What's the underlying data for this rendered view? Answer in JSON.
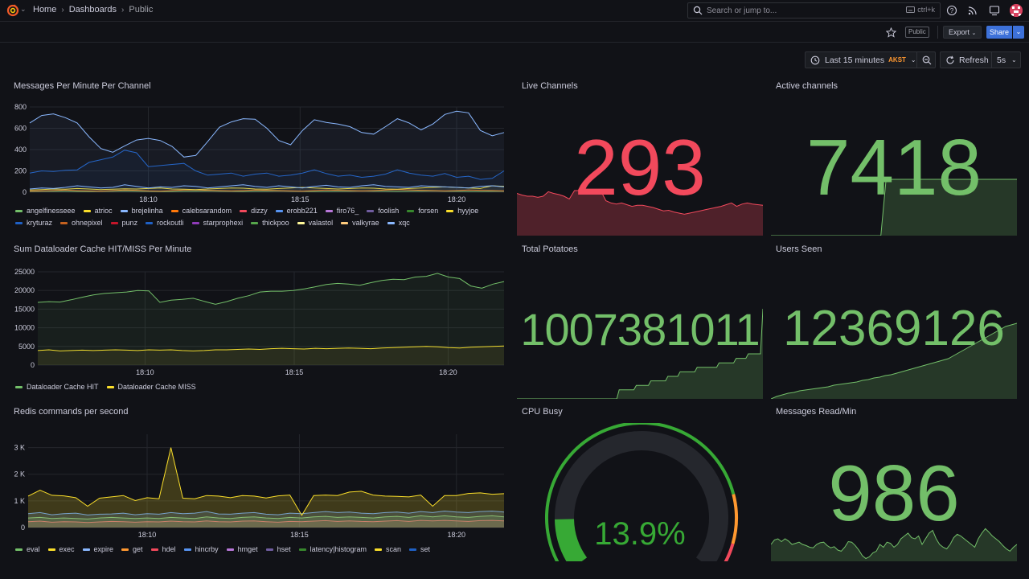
{
  "breadcrumb": {
    "home": "Home",
    "dashboards": "Dashboards",
    "current": "Public"
  },
  "search": {
    "placeholder": "Search or jump to...",
    "shortcut": "ctrl+k"
  },
  "toolbar": {
    "public_badge": "Public",
    "export_label": "Export",
    "share_label": "Share"
  },
  "time": {
    "range_label": "Last 15 minutes",
    "timezone": "AKST",
    "refresh_label": "Refresh",
    "refresh_interval": "5s"
  },
  "icons": [
    "grafana-logo-icon",
    "search-icon",
    "keyboard-icon",
    "help-icon",
    "rss-icon",
    "monitor-icon",
    "star-icon",
    "clock-icon",
    "zoom-out-icon",
    "refresh-icon"
  ],
  "colors": {
    "green": "#73bf69",
    "red": "#f2495c",
    "orange": "#ff9830",
    "yellow": "#fade2a",
    "blue": "#5794f2",
    "gauge_green": "#37a935"
  },
  "panels": {
    "messages": {
      "title": "Messages Per Minute Per Channel",
      "legend": [
        {
          "name": "angelfinesseee",
          "color": "#73bf69"
        },
        {
          "name": "atrioc",
          "color": "#fade2a"
        },
        {
          "name": "brejelinha",
          "color": "#8ab8ff"
        },
        {
          "name": "calebsarandom",
          "color": "#ff780a"
        },
        {
          "name": "dizzy",
          "color": "#f2495c"
        },
        {
          "name": "erobb221",
          "color": "#5794f2"
        },
        {
          "name": "firo76_",
          "color": "#b877d9"
        },
        {
          "name": "foolish",
          "color": "#705da0"
        },
        {
          "name": "forsen",
          "color": "#37872d"
        },
        {
          "name": "hyyjoe",
          "color": "#fade2a"
        },
        {
          "name": "kryturaz",
          "color": "#1f60c4"
        },
        {
          "name": "ohnepixel",
          "color": "#c4611f"
        },
        {
          "name": "punz",
          "color": "#c4162a"
        },
        {
          "name": "rockoutli",
          "color": "#1f60c4"
        },
        {
          "name": "starprophexi",
          "color": "#8f3bb8"
        },
        {
          "name": "thickpoo",
          "color": "#56a64b"
        },
        {
          "name": "valastol",
          "color": "#fff899"
        },
        {
          "name": "valkyrae",
          "color": "#ffcb7d"
        },
        {
          "name": "xqc",
          "color": "#8ab8ff"
        }
      ]
    },
    "live": {
      "title": "Live Channels",
      "value": "293"
    },
    "active": {
      "title": "Active channels",
      "value": "7418"
    },
    "dataloader": {
      "title": "Sum Dataloader Cache HIT/MISS Per Minute",
      "legend": [
        {
          "name": "Dataloader Cache HIT",
          "color": "#73bf69"
        },
        {
          "name": "Dataloader Cache MISS",
          "color": "#fade2a"
        }
      ]
    },
    "potatoes": {
      "title": "Total Potatoes",
      "value": "1007381011"
    },
    "users": {
      "title": "Users Seen",
      "value": "12369126"
    },
    "redis": {
      "title": "Redis commands per second",
      "legend": [
        {
          "name": "eval",
          "color": "#73bf69"
        },
        {
          "name": "exec",
          "color": "#fade2a"
        },
        {
          "name": "expire",
          "color": "#8ab8ff"
        },
        {
          "name": "get",
          "color": "#ff9830"
        },
        {
          "name": "hdel",
          "color": "#f2495c"
        },
        {
          "name": "hincrby",
          "color": "#5794f2"
        },
        {
          "name": "hmget",
          "color": "#b877d9"
        },
        {
          "name": "hset",
          "color": "#705da0"
        },
        {
          "name": "latency|histogram",
          "color": "#37872d"
        },
        {
          "name": "scan",
          "color": "#fade2a"
        },
        {
          "name": "set",
          "color": "#1f60c4"
        }
      ]
    },
    "cpu": {
      "title": "CPU Busy",
      "value": "13.9%",
      "percent": 13.9
    },
    "readmin": {
      "title": "Messages Read/Min",
      "value": "986"
    }
  },
  "chart_data": [
    {
      "type": "line",
      "title": "Messages Per Minute Per Channel",
      "x_ticks": [
        "18:10",
        "18:15",
        "18:20"
      ],
      "ylim": [
        0,
        800
      ],
      "y_ticks": [
        0,
        200,
        400,
        600,
        800
      ],
      "series": [
        {
          "name": "xqc",
          "color": "#8ab8ff",
          "values": [
            650,
            720,
            735,
            700,
            650,
            520,
            410,
            375,
            435,
            490,
            505,
            485,
            430,
            330,
            345,
            475,
            610,
            660,
            690,
            685,
            600,
            485,
            445,
            580,
            680,
            655,
            640,
            615,
            560,
            545,
            615,
            690,
            650,
            585,
            640,
            730,
            760,
            745,
            580,
            530,
            560
          ]
        },
        {
          "name": "rockoutli",
          "color": "#1f60c4",
          "values": [
            180,
            200,
            195,
            205,
            210,
            280,
            305,
            330,
            395,
            370,
            240,
            250,
            260,
            270,
            200,
            160,
            170,
            180,
            150,
            170,
            180,
            150,
            160,
            180,
            210,
            175,
            150,
            160,
            140,
            150,
            170,
            210,
            180,
            160,
            150,
            175,
            140,
            150,
            120,
            130,
            200
          ]
        },
        {
          "name": "brejelinha",
          "color": "#8ab8ff",
          "values": [
            30,
            40,
            35,
            45,
            60,
            50,
            40,
            45,
            70,
            55,
            40,
            50,
            45,
            60,
            55,
            40,
            50,
            60,
            70,
            55,
            45,
            60,
            50,
            40,
            55,
            65,
            50,
            45,
            60,
            70,
            55,
            50,
            45,
            60,
            55,
            50,
            45,
            40,
            55,
            60,
            50
          ]
        },
        {
          "name": "atrioc",
          "color": "#fade2a",
          "values": [
            20,
            25,
            30,
            28,
            35,
            30,
            25,
            28,
            32,
            30,
            35,
            40,
            30,
            28,
            25,
            30,
            35,
            40,
            38,
            30,
            28,
            35,
            40,
            45,
            40,
            35,
            30,
            35,
            40,
            38,
            30,
            28,
            35,
            40,
            45,
            50,
            45,
            40,
            35,
            60,
            55
          ]
        },
        {
          "name": "calebsarandom",
          "color": "#ff780a",
          "values": [
            10,
            12,
            15,
            20,
            15,
            12,
            10,
            15,
            20,
            18,
            12,
            10,
            15,
            20,
            22,
            18,
            15,
            12,
            15,
            20,
            18,
            15,
            12,
            10,
            15,
            20,
            18,
            15,
            12,
            15,
            20,
            25,
            22,
            18,
            15,
            12,
            15,
            20,
            18,
            15,
            12
          ]
        },
        {
          "name": "thickpoo",
          "color": "#56a64b",
          "values": [
            5,
            8,
            10,
            8,
            6,
            5,
            8,
            10,
            12,
            10,
            8,
            6,
            5,
            8,
            10,
            12,
            10,
            8,
            6,
            8,
            10,
            12,
            10,
            8,
            6,
            5,
            8,
            10,
            12,
            10,
            8,
            6,
            8,
            10,
            12,
            10,
            8,
            6,
            5,
            8,
            10
          ]
        }
      ]
    },
    {
      "type": "area",
      "title": "Live Channels",
      "values": [
        75,
        72,
        70,
        70,
        68,
        70,
        78,
        75,
        73,
        70,
        65,
        80,
        80,
        80,
        76,
        78,
        80,
        62,
        58,
        56,
        58,
        55,
        52,
        54,
        54,
        52,
        50,
        47,
        44,
        45,
        42,
        40,
        38,
        40,
        42,
        44,
        46,
        48,
        50,
        52,
        55,
        58,
        52,
        56,
        58,
        56,
        55,
        54
      ]
    },
    {
      "type": "area",
      "title": "Active channels",
      "values": [
        0,
        0,
        0,
        0,
        0,
        0,
        0,
        0,
        0,
        0,
        0,
        0,
        0,
        0,
        0,
        0,
        0,
        0,
        0,
        0,
        0,
        0,
        100,
        100,
        100,
        100,
        100,
        100,
        100,
        100,
        100,
        100,
        100,
        100,
        100,
        100,
        100,
        100,
        100,
        100,
        100,
        100,
        100,
        100,
        100,
        100,
        100,
        100
      ]
    },
    {
      "type": "line",
      "title": "Sum Dataloader Cache HIT/MISS Per Minute",
      "x_ticks": [
        "18:10",
        "18:15",
        "18:20"
      ],
      "ylim": [
        0,
        25000
      ],
      "y_ticks": [
        0,
        5000,
        10000,
        15000,
        20000,
        25000
      ],
      "series": [
        {
          "name": "Dataloader Cache HIT",
          "color": "#73bf69",
          "values": [
            16800,
            17000,
            16900,
            17500,
            18200,
            18800,
            19200,
            19400,
            19600,
            20000,
            19900,
            16800,
            17400,
            17600,
            17900,
            17100,
            16300,
            17000,
            17900,
            18600,
            19600,
            19800,
            19800,
            20000,
            20400,
            21000,
            21600,
            21900,
            21700,
            21400,
            22100,
            22700,
            23000,
            22900,
            23600,
            23800,
            24600,
            23600,
            23200,
            21200,
            20600,
            21700,
            22400
          ]
        },
        {
          "name": "Dataloader Cache MISS",
          "color": "#fade2a",
          "values": [
            3900,
            4100,
            3800,
            3900,
            4000,
            3900,
            4000,
            4100,
            4000,
            3900,
            4100,
            4000,
            4100,
            3900,
            3800,
            3900,
            4100,
            4100,
            4200,
            4300,
            4200,
            4400,
            4500,
            4400,
            4300,
            4500,
            4400,
            4500,
            4600,
            4500,
            4400,
            4600,
            4700,
            4800,
            4900,
            5000,
            4900,
            4700,
            4600,
            4800,
            4900,
            5000,
            5100
          ]
        }
      ]
    },
    {
      "type": "area",
      "title": "Total Potatoes",
      "values": [
        0,
        0,
        0,
        0,
        0,
        0,
        0,
        0,
        0,
        0,
        0,
        0,
        0,
        0,
        0,
        0,
        0,
        0,
        0,
        0,
        0,
        0,
        0,
        0,
        0,
        0,
        0,
        0,
        0,
        0,
        0,
        0,
        0,
        0,
        0,
        0,
        0,
        0,
        0,
        0,
        0,
        0,
        10,
        10,
        10,
        10,
        10,
        10,
        10,
        15,
        15,
        15,
        15,
        15,
        15,
        20,
        20,
        20,
        20,
        20,
        20,
        20,
        25,
        25,
        25,
        25,
        25,
        30,
        30,
        30,
        30,
        30,
        30,
        30,
        35,
        35,
        35,
        35,
        35,
        35,
        35,
        35,
        35,
        40,
        40,
        40,
        40,
        40,
        40,
        40,
        45,
        45,
        45,
        45,
        45,
        50,
        50,
        50,
        50,
        50,
        50,
        100
      ]
    },
    {
      "type": "area",
      "title": "Users Seen",
      "values": [
        0,
        3,
        5,
        7,
        8,
        10,
        11,
        12,
        13,
        14,
        15,
        17,
        18,
        19,
        20,
        21,
        23,
        24,
        26,
        27,
        29,
        30,
        32,
        34,
        36,
        38,
        40,
        42,
        44,
        46,
        48,
        50,
        54,
        58,
        62,
        66,
        70,
        74,
        78,
        82,
        86,
        90,
        92,
        94
      ]
    },
    {
      "type": "area",
      "title": "Redis commands per second",
      "x_ticks": [
        "18:10",
        "18:15",
        "18:20"
      ],
      "ylim": [
        0,
        3500
      ],
      "y_ticks": [
        "0",
        "1 K",
        "2 K",
        "3 K"
      ],
      "series": [
        {
          "name": "exec",
          "color": "#fade2a",
          "values": [
            1180,
            1400,
            1210,
            1190,
            1120,
            800,
            1100,
            1150,
            1200,
            1010,
            1120,
            1080,
            3000,
            1100,
            1080,
            1200,
            1180,
            1120,
            1200,
            1180,
            1110,
            1190,
            1220,
            460,
            1200,
            1220,
            1200,
            1330,
            1360,
            1220,
            1180,
            1170,
            1150,
            1220,
            800,
            1200,
            1200,
            1280,
            1300,
            1250,
            1270
          ]
        },
        {
          "name": "hincrby",
          "color": "#5794f2",
          "values": [
            520,
            560,
            480,
            520,
            540,
            470,
            500,
            510,
            540,
            480,
            520,
            500,
            560,
            520,
            540,
            600,
            510,
            500,
            540,
            560,
            500,
            480,
            540,
            520,
            560,
            600,
            560,
            580,
            540,
            520,
            560,
            580,
            540,
            600,
            560,
            620,
            580,
            560,
            600,
            620,
            580
          ]
        },
        {
          "name": "latency|histogram",
          "color": "#73bf69",
          "values": [
            360,
            380,
            340,
            360,
            340,
            320,
            360,
            380,
            360,
            340,
            360,
            340,
            380,
            360,
            340,
            400,
            360,
            340,
            380,
            400,
            360,
            340,
            380,
            360,
            400,
            420,
            380,
            400,
            380,
            360,
            400,
            420,
            380,
            440,
            400,
            440,
            400,
            380,
            420,
            440,
            400
          ]
        },
        {
          "name": "hdel",
          "color": "#f2495c",
          "values": [
            220,
            240,
            200,
            220,
            210,
            190,
            210,
            230,
            220,
            200,
            220,
            210,
            240,
            220,
            210,
            250,
            220,
            210,
            240,
            250,
            220,
            200,
            230,
            220,
            240,
            260,
            230,
            250,
            230,
            220,
            240,
            260,
            230,
            270,
            250,
            270,
            250,
            230,
            260,
            270,
            250
          ]
        }
      ]
    },
    {
      "type": "area",
      "title": "Messages Read/Min",
      "values": [
        30,
        38,
        40,
        35,
        40,
        36,
        30,
        32,
        34,
        30,
        28,
        25,
        24,
        30,
        33,
        34,
        28,
        24,
        26,
        20,
        18,
        25,
        35,
        34,
        28,
        20,
        10,
        5,
        8,
        15,
        18,
        30,
        25,
        34,
        32,
        25,
        30,
        40,
        45,
        50,
        42,
        40,
        45,
        30,
        40,
        50,
        55,
        40,
        30,
        25,
        22,
        30,
        42,
        48,
        45,
        40,
        35,
        30,
        25,
        40,
        50,
        58,
        52,
        45,
        40,
        35,
        28,
        22,
        18,
        25,
        30
      ]
    }
  ]
}
